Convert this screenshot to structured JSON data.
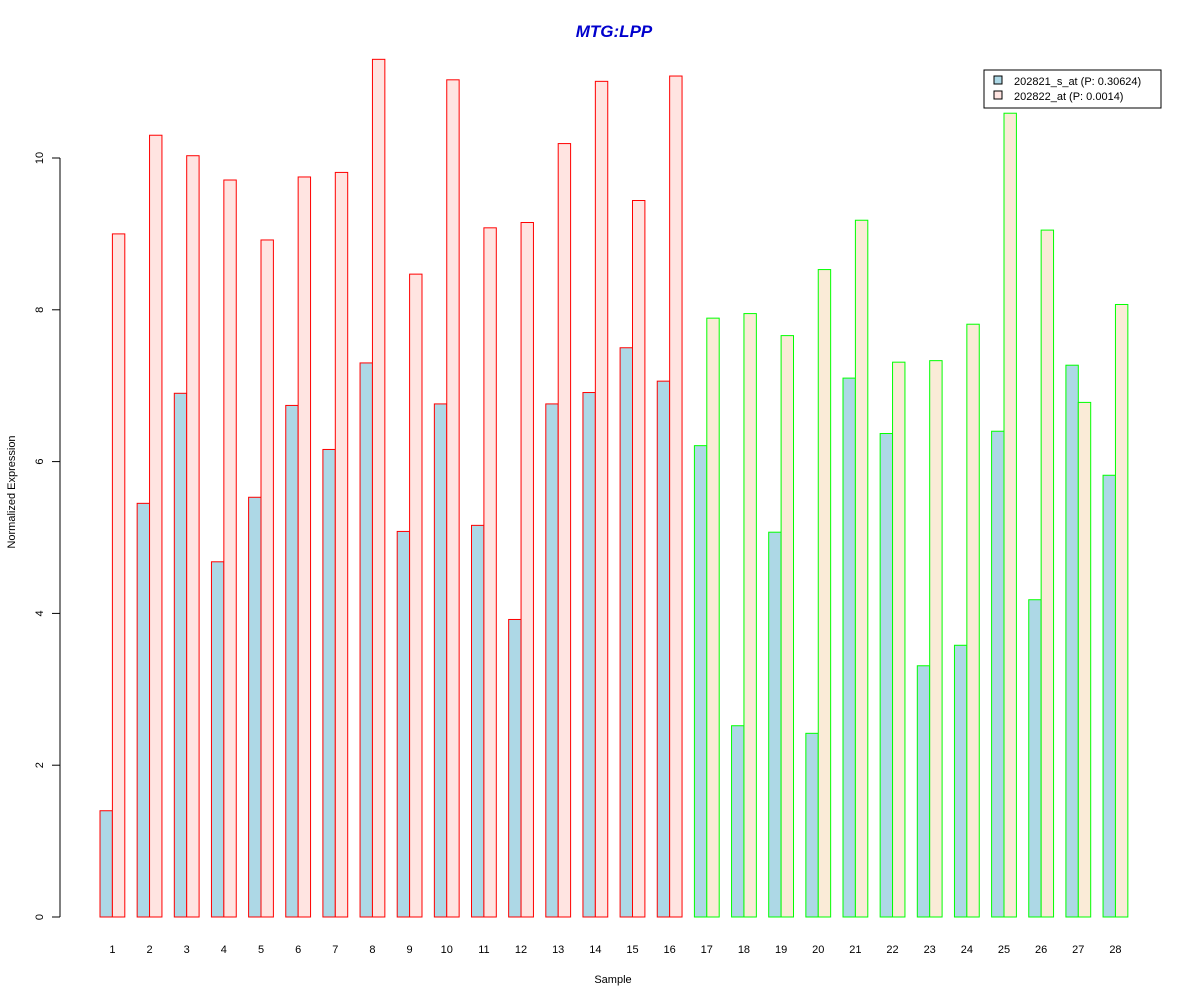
{
  "chart_data": {
    "type": "bar",
    "title": "MTG:LPP",
    "xlabel": "Sample",
    "ylabel": "Normalized Expression",
    "ylim": [
      0,
      11.3
    ],
    "yticks": [
      0,
      2,
      4,
      6,
      8,
      10
    ],
    "categories": [
      "1",
      "2",
      "3",
      "4",
      "5",
      "6",
      "7",
      "8",
      "9",
      "10",
      "11",
      "12",
      "13",
      "14",
      "15",
      "16",
      "17",
      "18",
      "19",
      "20",
      "21",
      "22",
      "23",
      "24",
      "25",
      "26",
      "27",
      "28"
    ],
    "groups": [
      {
        "samples": [
          1,
          16
        ],
        "border_color": "#ff0000",
        "second_series_fill": "#ffe4e1"
      },
      {
        "samples": [
          17,
          28
        ],
        "border_color": "#00ff00",
        "second_series_fill": "#faebd7"
      }
    ],
    "series": [
      {
        "name": "202821_s_at (P: 0.30624)",
        "fill": "#add8e6",
        "values": [
          1.4,
          5.45,
          6.9,
          4.68,
          5.53,
          6.74,
          6.16,
          7.3,
          5.08,
          6.76,
          5.16,
          3.92,
          6.76,
          6.91,
          7.5,
          7.06,
          6.21,
          2.52,
          5.07,
          2.42,
          7.1,
          6.37,
          3.31,
          3.58,
          6.4,
          4.18,
          7.27,
          5.82
        ]
      },
      {
        "name": "202822_at (P: 0.0014)",
        "fill": "#ffe4e1",
        "values": [
          9.0,
          10.3,
          10.03,
          9.71,
          8.92,
          9.75,
          9.81,
          11.3,
          8.47,
          11.03,
          9.08,
          9.15,
          10.19,
          11.01,
          9.44,
          11.08,
          7.89,
          7.95,
          7.66,
          8.53,
          9.18,
          7.31,
          7.33,
          7.81,
          10.59,
          9.05,
          6.78,
          8.07
        ]
      }
    ],
    "legend_position": "top-right",
    "grid": false
  },
  "style": {
    "title_color": "#0000cd",
    "legend_swatch_colors": [
      "#add8e6",
      "#ffe4e1"
    ]
  }
}
